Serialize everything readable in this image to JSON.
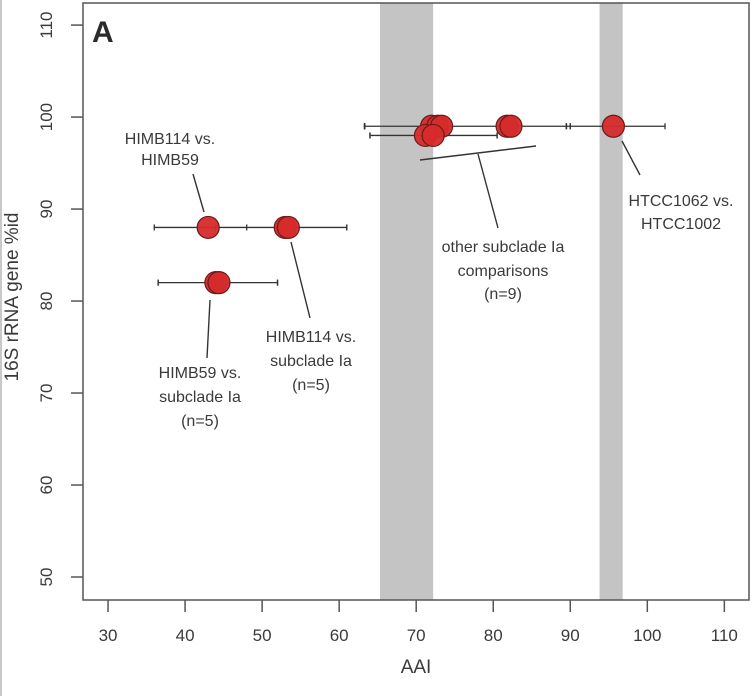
{
  "chart_data": {
    "type": "scatter",
    "panel_label": "A",
    "title": "",
    "xlabel": "AAI",
    "ylabel": "16S rRNA gene %id",
    "xlim": [
      26.75,
      113.2
    ],
    "ylim": [
      47.5,
      112.4
    ],
    "xticks": [
      30,
      40,
      50,
      60,
      70,
      80,
      90,
      100,
      110
    ],
    "yticks": [
      50,
      60,
      70,
      80,
      90,
      100,
      110
    ],
    "grid": false,
    "legend": "none",
    "colors": {
      "point": "#d62b2b",
      "point_edge": "#6b1a1a",
      "band": "#c4c4c4",
      "axis": "#555555",
      "errorbar": "#333333"
    },
    "shaded_bands": [
      {
        "x0": 65.3,
        "x1": 72.2
      },
      {
        "x0": 93.8,
        "x1": 96.8
      }
    ],
    "points": [
      {
        "x": 43.0,
        "y": 88,
        "xerr": [
          36.0,
          48.0
        ]
      },
      {
        "x": 53.0,
        "y": 88,
        "xerr": [
          44.0,
          61.0
        ]
      },
      {
        "x": 53.4,
        "y": 88,
        "xerr": [
          44.0,
          61.0
        ]
      },
      {
        "x": 44.0,
        "y": 82,
        "xerr": [
          36.5,
          52.0
        ]
      },
      {
        "x": 44.4,
        "y": 82,
        "xerr": [
          36.5,
          52.0
        ]
      },
      {
        "x": 72.0,
        "y": 99,
        "xerr": [
          63.3,
          89.5
        ]
      },
      {
        "x": 72.8,
        "y": 99,
        "xerr": [
          63.3,
          89.5
        ]
      },
      {
        "x": 73.3,
        "y": 99,
        "xerr": [
          63.3,
          89.5
        ]
      },
      {
        "x": 71.2,
        "y": 98,
        "xerr": [
          64.0,
          80.5
        ]
      },
      {
        "x": 72.2,
        "y": 98,
        "xerr": [
          64.0,
          80.5
        ]
      },
      {
        "x": 81.8,
        "y": 99,
        "xerr": [
          63.3,
          90.0
        ]
      },
      {
        "x": 82.3,
        "y": 99,
        "xerr": [
          63.3,
          90.0
        ]
      },
      {
        "x": 95.6,
        "y": 99,
        "xerr": [
          63.3,
          102.3
        ]
      }
    ],
    "errorbar_rows": [
      {
        "y": 88,
        "x0": 36.0,
        "x1": 61.0
      },
      {
        "y": 82,
        "x0": 36.5,
        "x1": 52.0
      },
      {
        "y": 99,
        "x0": 63.3,
        "x1": 102.3
      },
      {
        "y": 98,
        "x0": 64.0,
        "x1": 80.5
      }
    ],
    "annotations": [
      {
        "lines": [
          "HIMB114 vs.",
          "HIMB59"
        ],
        "anchor": "top-left-cluster"
      },
      {
        "lines": [
          "HIMB59 vs.",
          "subclade Ia",
          "(n=5)"
        ],
        "anchor": "below-82"
      },
      {
        "lines": [
          "HIMB114 vs.",
          "subclade Ia",
          "(n=5)"
        ],
        "anchor": "below-88"
      },
      {
        "lines": [
          "other subclade Ia",
          "comparisons",
          "(n=9)"
        ],
        "anchor": "below-99-cluster"
      },
      {
        "lines": [
          "HTCC1062 vs.",
          "HTCC1002"
        ],
        "anchor": "right-of-95"
      }
    ]
  }
}
